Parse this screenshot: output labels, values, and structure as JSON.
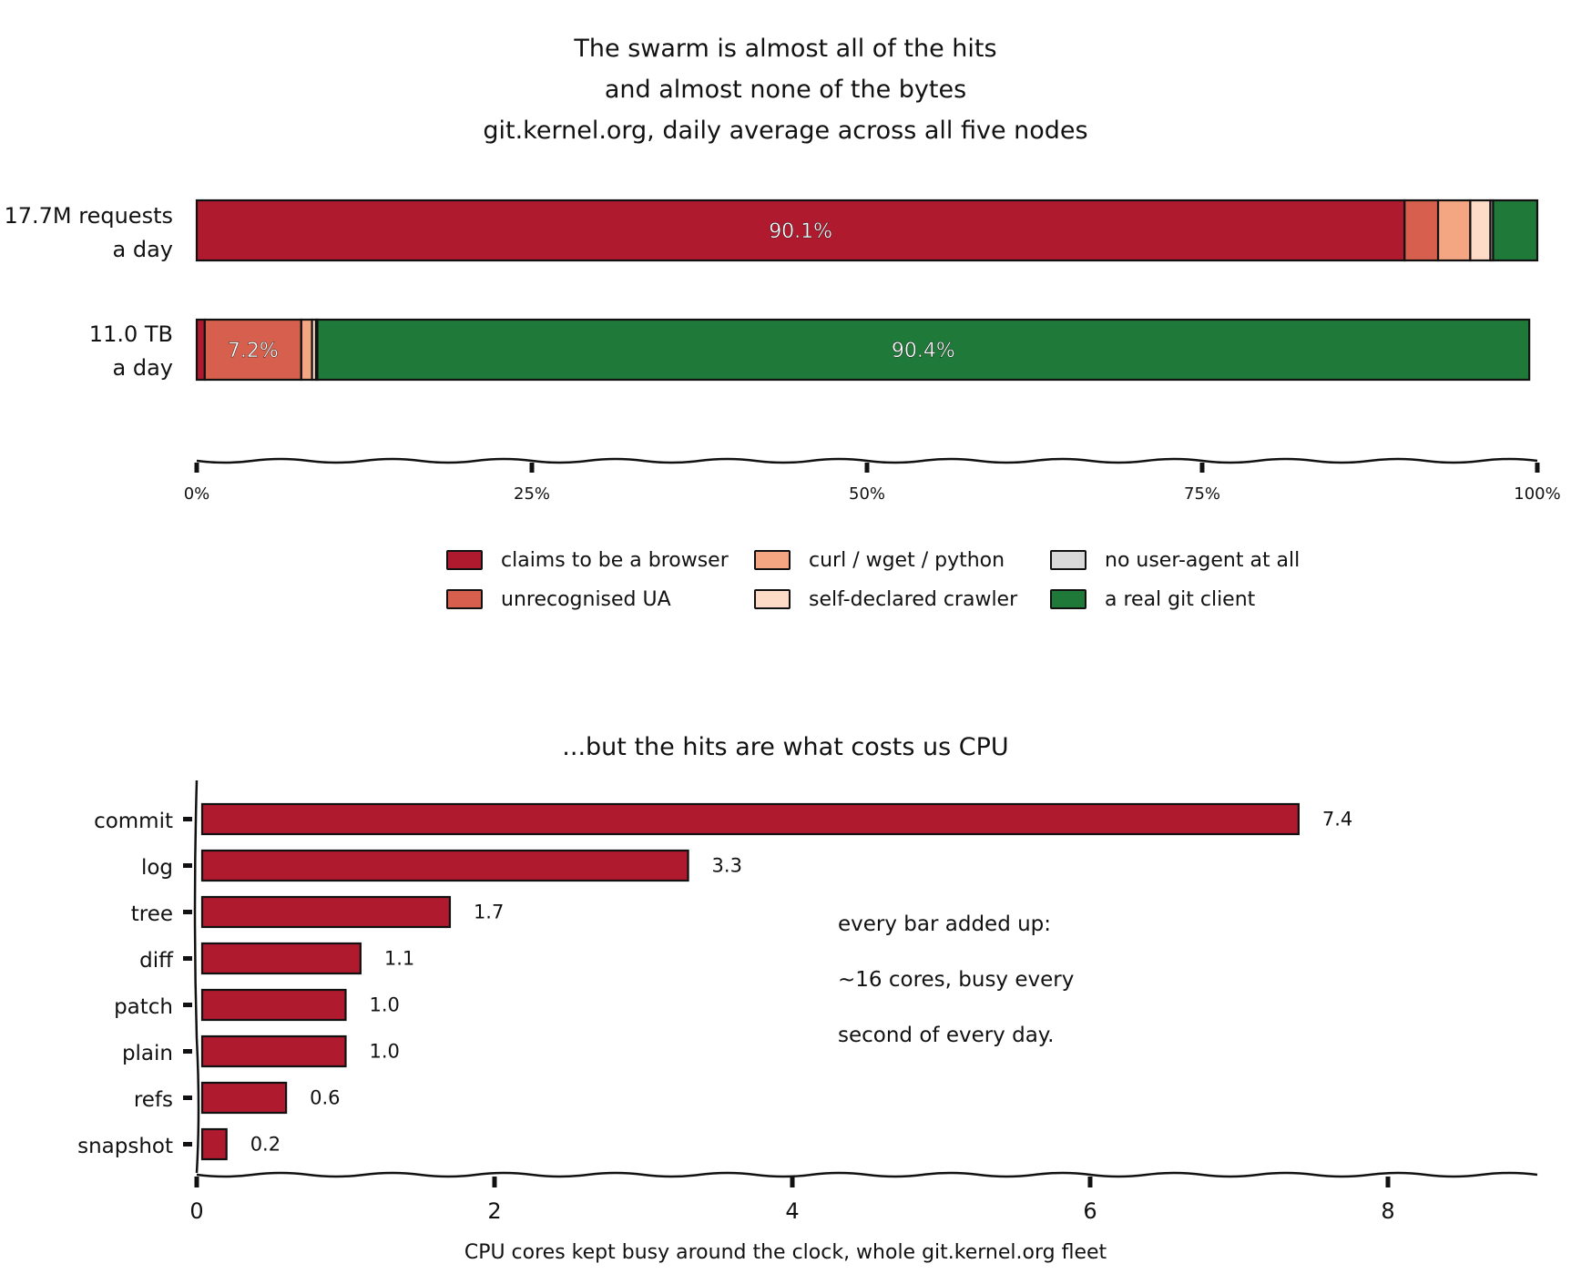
{
  "panel1": {
    "title_lines": [
      "The swarm is almost all of the hits",
      "and almost none of the bytes",
      "git.kernel.org, daily average across all five nodes"
    ],
    "rows": [
      {
        "label_lines": [
          "17.7M requests",
          "a day"
        ]
      },
      {
        "label_lines": [
          "11.0 TB",
          "a day"
        ]
      }
    ],
    "legend": [
      {
        "label": "claims to be a browser",
        "color": "#b01a2e"
      },
      {
        "label": "unrecognised UA",
        "color": "#d6604d"
      },
      {
        "label": "curl / wget / python",
        "color": "#f4a582"
      },
      {
        "label": "self-declared crawler",
        "color": "#fddbc7"
      },
      {
        "label": "no user-agent at all",
        "color": "#d9d9d9"
      },
      {
        "label": "a real git client",
        "color": "#1f7a3a"
      }
    ],
    "ticks": [
      "0%",
      "25%",
      "50%",
      "75%",
      "100%"
    ]
  },
  "panel2": {
    "title": "...but the hits are what costs us CPU",
    "xlabel": "CPU cores kept busy around the clock, whole git.kernel.org fleet",
    "ticks": [
      "0",
      "2",
      "4",
      "6",
      "8"
    ],
    "annotation_lines": [
      "every bar added up:",
      "~16 cores, busy every",
      "second of every day."
    ]
  },
  "chart_data": [
    {
      "type": "bar",
      "orientation": "horizontal",
      "stacked": true,
      "normalized": true,
      "title": "The swarm is almost all of the hits\nand almost none of the bytes\ngit.kernel.org, daily average across all five nodes",
      "categories": [
        "17.7M requests a day",
        "11.0 TB a day"
      ],
      "xlim": [
        0,
        100
      ],
      "series": [
        {
          "name": "claims to be a browser",
          "values": [
            90.1,
            0.6
          ],
          "color": "#b01a2e",
          "labels": [
            "90.1%",
            ""
          ]
        },
        {
          "name": "unrecognised UA",
          "values": [
            2.5,
            7.2
          ],
          "color": "#d6604d",
          "labels": [
            "",
            "7.2%"
          ]
        },
        {
          "name": "curl / wget / python",
          "values": [
            2.4,
            0.8
          ],
          "color": "#f4a582",
          "labels": [
            "",
            ""
          ]
        },
        {
          "name": "self-declared crawler",
          "values": [
            1.5,
            0.3
          ],
          "color": "#fddbc7",
          "labels": [
            "",
            ""
          ]
        },
        {
          "name": "no user-agent at all",
          "values": [
            0.2,
            0.1
          ],
          "color": "#d9d9d9",
          "labels": [
            "",
            ""
          ]
        },
        {
          "name": "a real git client",
          "values": [
            3.3,
            90.4
          ],
          "color": "#1f7a3a",
          "labels": [
            "",
            "90.4%"
          ]
        }
      ],
      "legend_position": "bottom",
      "grid": false
    },
    {
      "type": "bar",
      "orientation": "horizontal",
      "title": "...but the hits are what costs us CPU",
      "xlabel": "CPU cores kept busy around the clock, whole git.kernel.org fleet",
      "categories": [
        "commit",
        "log",
        "tree",
        "diff",
        "patch",
        "plain",
        "refs",
        "snapshot"
      ],
      "values": [
        7.4,
        3.3,
        1.7,
        1.1,
        1.0,
        1.0,
        0.6,
        0.2
      ],
      "value_labels": [
        "7.4",
        "3.3",
        "1.7",
        "1.1",
        "1.0",
        "1.0",
        "0.6",
        "0.2"
      ],
      "color": "#b01a2e",
      "xlim": [
        0,
        9
      ],
      "grid": false
    }
  ]
}
